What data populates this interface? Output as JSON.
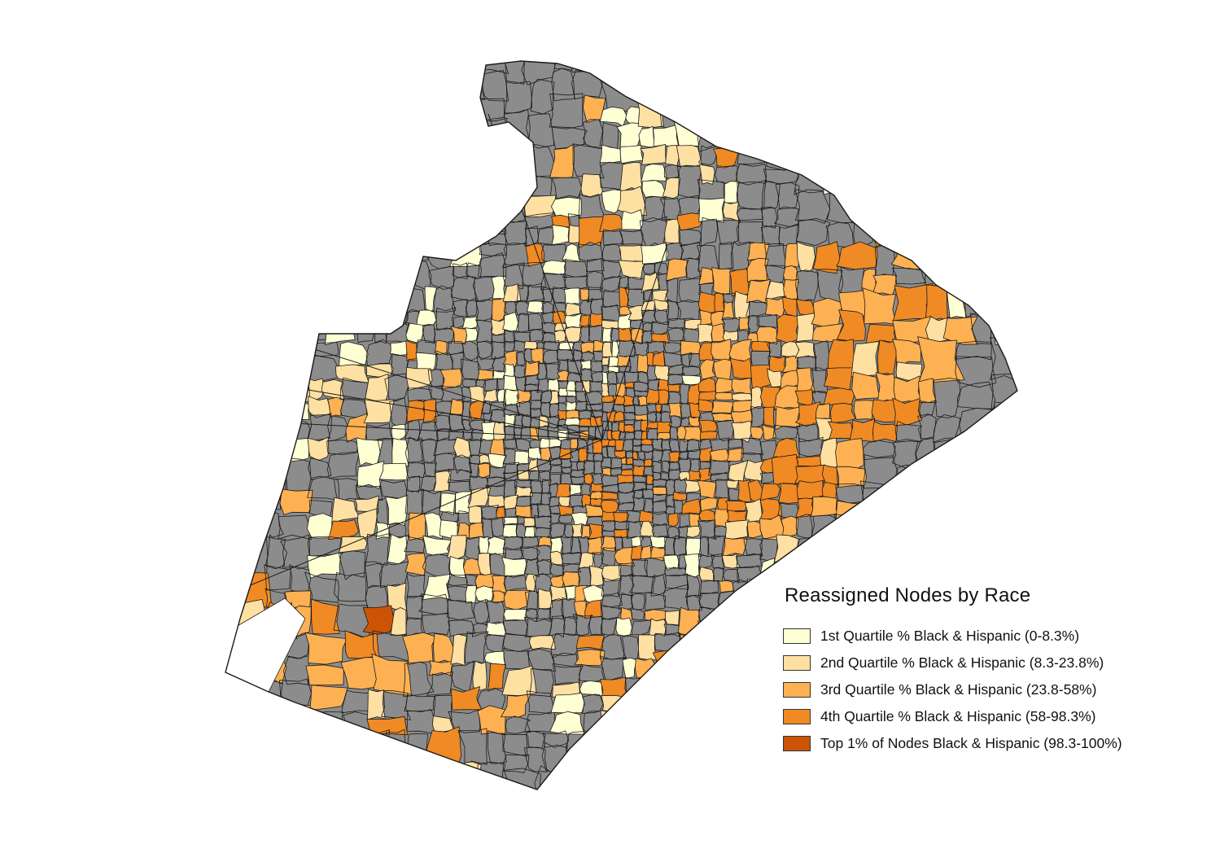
{
  "map": {
    "unassigned_color": "#8c8c8c",
    "outline_color": "#1a1a1a",
    "background_color": "#ffffff"
  },
  "legend": {
    "title": "Reassigned  Nodes by Race",
    "items": [
      {
        "label": "1st Quartile % Black & Hispanic (0-8.3%)",
        "color": "#ffffd4"
      },
      {
        "label": "2nd Quartile % Black & Hispanic (8.3-23.8%)",
        "color": "#fee0a2"
      },
      {
        "label": "3rd Quartile % Black & Hispanic (23.8-58%)",
        "color": "#fdb152"
      },
      {
        "label": "4th Quartile % Black & Hispanic (58-98.3%)",
        "color": "#f08a24"
      },
      {
        "label": "Top 1% of Nodes Black & Hispanic (98.3-100%)",
        "color": "#cc5406"
      }
    ]
  }
}
